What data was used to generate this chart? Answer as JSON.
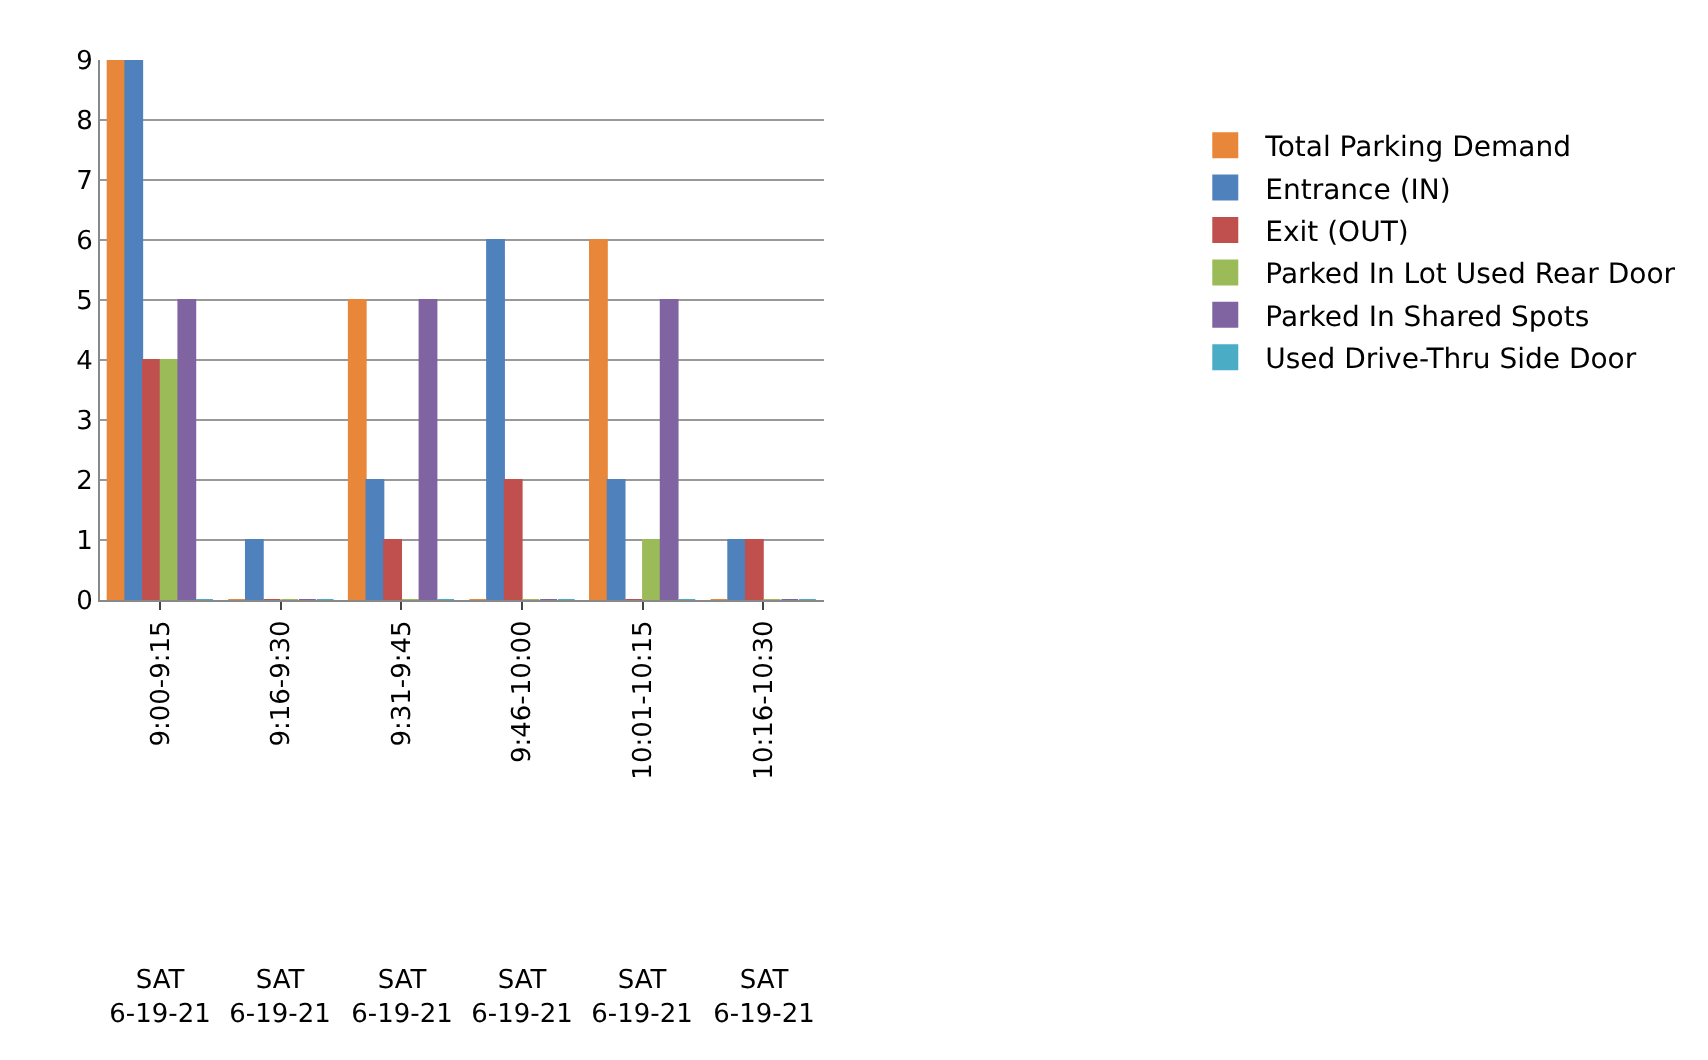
{
  "chart_data": {
    "type": "bar",
    "categories": [
      "9:00-9:15",
      "9:16-9:30",
      "9:31-9:45",
      "9:46-10:00",
      "10:01-10:15",
      "10:16-10:30"
    ],
    "series": [
      {
        "name": "Total Parking Demand",
        "color": "#e8873a",
        "values": [
          9,
          0,
          5,
          0,
          6,
          0
        ]
      },
      {
        "name": "Entrance (IN)",
        "color": "#4f81bd",
        "values": [
          9,
          1,
          2,
          6,
          2,
          1
        ]
      },
      {
        "name": "Exit (OUT)",
        "color": "#c0504d",
        "values": [
          4,
          0,
          1,
          2,
          0,
          1
        ]
      },
      {
        "name": "Parked In Lot Used Rear Door",
        "color": "#9bbb59",
        "values": [
          4,
          0,
          0,
          0,
          1,
          0
        ]
      },
      {
        "name": "Parked In Shared Spots",
        "color": "#8064a2",
        "values": [
          5,
          0,
          5,
          0,
          5,
          0
        ]
      },
      {
        "name": "Used Drive-Thru Side Door",
        "color": "#4bacc6",
        "values": [
          0,
          0,
          0,
          0,
          0,
          0
        ]
      }
    ],
    "annotations": [
      "SAT 6-19-21",
      "SAT 6-19-21",
      "SAT 6-19-21",
      "SAT 6-19-21",
      "SAT 6-19-21",
      "SAT 6-19-21"
    ],
    "ylim": [
      0,
      9
    ],
    "yticks": [
      0,
      1,
      2,
      3,
      4,
      5,
      6,
      7,
      8,
      9
    ],
    "grid": "y",
    "legend": "right"
  }
}
